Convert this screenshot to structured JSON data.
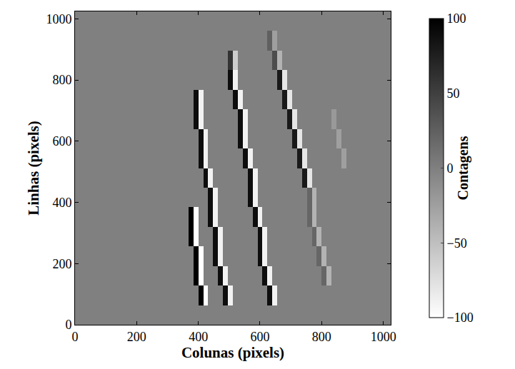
{
  "chart_data": {
    "type": "heatmap",
    "x_label": "Colunas (pixels)",
    "y_label": "Linhas (pixels)",
    "xlim": [
      0,
      1024
    ],
    "ylim": [
      0,
      1024
    ],
    "xticks": [
      0,
      200,
      400,
      600,
      800,
      1000
    ],
    "yticks": [
      0,
      200,
      400,
      600,
      800,
      1000
    ],
    "x": [
      8,
      24,
      40,
      56,
      72,
      88,
      104,
      120,
      136,
      152,
      168,
      184,
      200,
      216,
      232,
      248,
      264,
      280,
      296,
      312,
      328,
      344,
      360,
      376,
      392,
      408,
      424,
      440,
      456,
      472,
      488,
      504,
      520,
      536,
      552,
      568,
      584,
      600,
      616,
      632,
      648,
      664,
      680,
      696,
      712,
      728,
      744,
      760,
      776,
      792,
      808,
      824,
      840,
      856,
      872,
      888,
      904,
      920,
      936,
      952,
      968,
      984,
      1000,
      1016
    ],
    "y": [
      32,
      96,
      160,
      224,
      288,
      352,
      416,
      480,
      544,
      608,
      672,
      736,
      800,
      864,
      928,
      992
    ],
    "z": [
      [
        0,
        0,
        0,
        0,
        0,
        0,
        0,
        0,
        0,
        0,
        0,
        0,
        0,
        0,
        0,
        0,
        0,
        0,
        0,
        0,
        0,
        0,
        0,
        0,
        0,
        0,
        0,
        0,
        0,
        0,
        0,
        0,
        0,
        0,
        0,
        0,
        0,
        0,
        0,
        0,
        0,
        0,
        0,
        0,
        0,
        0,
        0,
        0,
        0,
        0,
        0,
        0,
        0,
        0,
        0,
        0,
        0,
        0,
        0,
        0,
        0,
        0,
        0,
        0
      ],
      [
        0,
        0,
        0,
        0,
        0,
        0,
        0,
        0,
        0,
        0,
        0,
        0,
        0,
        0,
        0,
        0,
        0,
        0,
        0,
        0,
        0,
        0,
        0,
        0,
        0,
        100,
        -100,
        0,
        0,
        0,
        90,
        -90,
        0,
        0,
        0,
        0,
        0,
        0,
        0,
        90,
        -90,
        0,
        0,
        0,
        0,
        0,
        0,
        0,
        0,
        0,
        0,
        0,
        0,
        0,
        0,
        0,
        0,
        0,
        0,
        0,
        0,
        0,
        0,
        0
      ],
      [
        0,
        0,
        0,
        0,
        0,
        0,
        0,
        0,
        0,
        0,
        0,
        0,
        0,
        0,
        0,
        0,
        0,
        0,
        0,
        0,
        0,
        0,
        0,
        0,
        100,
        -100,
        0,
        0,
        0,
        90,
        -90,
        0,
        0,
        0,
        0,
        0,
        0,
        0,
        90,
        -90,
        0,
        0,
        0,
        0,
        0,
        0,
        0,
        0,
        0,
        0,
        20,
        -40,
        0,
        0,
        0,
        0,
        0,
        0,
        0,
        0,
        0,
        0,
        0,
        0
      ],
      [
        0,
        0,
        0,
        0,
        0,
        0,
        0,
        0,
        0,
        0,
        0,
        0,
        0,
        0,
        0,
        0,
        0,
        0,
        0,
        0,
        0,
        0,
        0,
        0,
        100,
        -100,
        0,
        0,
        90,
        -90,
        0,
        0,
        0,
        0,
        0,
        0,
        0,
        90,
        -90,
        0,
        0,
        0,
        0,
        0,
        0,
        0,
        0,
        0,
        0,
        20,
        -40,
        0,
        0,
        0,
        0,
        0,
        0,
        0,
        0,
        0,
        0,
        0,
        0,
        0
      ],
      [
        0,
        0,
        0,
        0,
        0,
        0,
        0,
        0,
        0,
        0,
        0,
        0,
        0,
        0,
        0,
        0,
        0,
        0,
        0,
        0,
        0,
        0,
        0,
        100,
        -100,
        0,
        0,
        0,
        90,
        -90,
        0,
        0,
        0,
        0,
        0,
        0,
        0,
        90,
        -90,
        0,
        0,
        0,
        0,
        0,
        0,
        0,
        0,
        0,
        20,
        -40,
        0,
        0,
        0,
        0,
        0,
        0,
        0,
        0,
        0,
        0,
        0,
        0,
        0,
        0
      ],
      [
        0,
        0,
        0,
        0,
        0,
        0,
        0,
        0,
        0,
        0,
        0,
        0,
        0,
        0,
        0,
        0,
        0,
        0,
        0,
        0,
        0,
        0,
        0,
        100,
        -100,
        0,
        0,
        90,
        -90,
        0,
        0,
        0,
        0,
        0,
        0,
        0,
        90,
        -90,
        0,
        0,
        0,
        0,
        0,
        0,
        0,
        0,
        0,
        20,
        -40,
        0,
        0,
        0,
        0,
        0,
        0,
        0,
        0,
        0,
        0,
        0,
        0,
        0,
        0,
        0
      ],
      [
        0,
        0,
        0,
        0,
        0,
        0,
        0,
        0,
        0,
        0,
        0,
        0,
        0,
        0,
        0,
        0,
        0,
        0,
        0,
        0,
        0,
        0,
        0,
        0,
        0,
        0,
        0,
        90,
        -90,
        0,
        0,
        0,
        0,
        0,
        0,
        90,
        -90,
        0,
        0,
        0,
        0,
        0,
        0,
        0,
        0,
        0,
        0,
        20,
        -40,
        0,
        0,
        0,
        0,
        0,
        0,
        0,
        0,
        0,
        0,
        0,
        0,
        0,
        0,
        0
      ],
      [
        0,
        0,
        0,
        0,
        0,
        0,
        0,
        0,
        0,
        0,
        0,
        0,
        0,
        0,
        0,
        0,
        0,
        0,
        0,
        0,
        0,
        0,
        0,
        0,
        0,
        0,
        90,
        -90,
        0,
        0,
        0,
        0,
        0,
        0,
        0,
        90,
        -90,
        0,
        0,
        0,
        0,
        0,
        0,
        0,
        0,
        0,
        80,
        -80,
        0,
        0,
        0,
        0,
        0,
        0,
        0,
        0,
        0,
        0,
        0,
        0,
        0,
        0,
        0,
        0
      ],
      [
        0,
        0,
        0,
        0,
        0,
        0,
        0,
        0,
        0,
        0,
        0,
        0,
        0,
        0,
        0,
        0,
        0,
        0,
        0,
        0,
        0,
        0,
        0,
        0,
        0,
        90,
        -90,
        0,
        0,
        0,
        0,
        0,
        0,
        0,
        90,
        -90,
        0,
        0,
        0,
        0,
        0,
        0,
        0,
        0,
        0,
        80,
        -80,
        0,
        0,
        0,
        0,
        0,
        0,
        0,
        -25,
        0,
        0,
        0,
        0,
        0,
        0,
        0,
        0,
        0
      ],
      [
        0,
        0,
        0,
        0,
        0,
        0,
        0,
        0,
        0,
        0,
        0,
        0,
        0,
        0,
        0,
        0,
        0,
        0,
        0,
        0,
        0,
        0,
        0,
        0,
        0,
        90,
        -90,
        0,
        0,
        0,
        0,
        0,
        0,
        90,
        -90,
        0,
        0,
        0,
        0,
        0,
        0,
        0,
        0,
        0,
        80,
        -80,
        0,
        0,
        0,
        0,
        0,
        0,
        0,
        -25,
        0,
        0,
        0,
        0,
        0,
        0,
        0,
        0,
        0,
        0
      ],
      [
        0,
        0,
        0,
        0,
        0,
        0,
        0,
        0,
        0,
        0,
        0,
        0,
        0,
        0,
        0,
        0,
        0,
        0,
        0,
        0,
        0,
        0,
        0,
        0,
        90,
        -90,
        0,
        0,
        0,
        0,
        0,
        0,
        0,
        90,
        -90,
        0,
        0,
        0,
        0,
        0,
        0,
        0,
        0,
        80,
        -80,
        0,
        0,
        0,
        0,
        0,
        0,
        0,
        -20,
        0,
        0,
        0,
        0,
        0,
        0,
        0,
        0,
        0,
        0,
        0
      ],
      [
        0,
        0,
        0,
        0,
        0,
        0,
        0,
        0,
        0,
        0,
        0,
        0,
        0,
        0,
        0,
        0,
        0,
        0,
        0,
        0,
        0,
        0,
        0,
        0,
        90,
        -90,
        0,
        0,
        0,
        0,
        0,
        0,
        90,
        -90,
        0,
        0,
        0,
        0,
        0,
        0,
        0,
        0,
        80,
        -80,
        0,
        0,
        0,
        0,
        0,
        0,
        0,
        0,
        0,
        0,
        0,
        0,
        0,
        0,
        0,
        0,
        0,
        0,
        0,
        0
      ],
      [
        0,
        0,
        0,
        0,
        0,
        0,
        0,
        0,
        0,
        0,
        0,
        0,
        0,
        0,
        0,
        0,
        0,
        0,
        0,
        0,
        0,
        0,
        0,
        0,
        0,
        0,
        0,
        0,
        0,
        0,
        0,
        90,
        -90,
        0,
        0,
        0,
        0,
        0,
        0,
        0,
        0,
        80,
        -80,
        0,
        0,
        0,
        0,
        0,
        0,
        0,
        0,
        0,
        0,
        0,
        0,
        0,
        0,
        0,
        0,
        0,
        0,
        0,
        0,
        0
      ],
      [
        0,
        0,
        0,
        0,
        0,
        0,
        0,
        0,
        0,
        0,
        0,
        0,
        0,
        0,
        0,
        0,
        0,
        0,
        0,
        0,
        0,
        0,
        0,
        0,
        0,
        0,
        0,
        0,
        0,
        0,
        0,
        60,
        -60,
        0,
        0,
        0,
        0,
        0,
        0,
        0,
        40,
        -40,
        0,
        0,
        0,
        0,
        0,
        0,
        0,
        0,
        0,
        0,
        0,
        0,
        0,
        0,
        0,
        0,
        0,
        0,
        0,
        0,
        0,
        0
      ],
      [
        0,
        0,
        0,
        0,
        0,
        0,
        0,
        0,
        0,
        0,
        0,
        0,
        0,
        0,
        0,
        0,
        0,
        0,
        0,
        0,
        0,
        0,
        0,
        0,
        0,
        0,
        0,
        0,
        0,
        0,
        0,
        0,
        0,
        0,
        0,
        0,
        0,
        0,
        0,
        25,
        -25,
        0,
        0,
        0,
        0,
        0,
        0,
        0,
        0,
        0,
        0,
        0,
        0,
        0,
        0,
        0,
        0,
        0,
        0,
        0,
        0,
        0,
        0,
        0
      ],
      [
        0,
        0,
        0,
        0,
        0,
        0,
        0,
        0,
        0,
        0,
        0,
        0,
        0,
        0,
        0,
        0,
        0,
        0,
        0,
        0,
        0,
        0,
        0,
        0,
        0,
        0,
        0,
        0,
        0,
        0,
        0,
        0,
        0,
        0,
        0,
        0,
        0,
        0,
        0,
        0,
        0,
        0,
        0,
        0,
        0,
        0,
        0,
        0,
        0,
        0,
        0,
        0,
        0,
        0,
        0,
        0,
        0,
        0,
        0,
        0,
        0,
        0,
        0,
        0
      ]
    ],
    "colorbar": {
      "title": "Contagens",
      "range": [
        -100,
        100
      ],
      "ticks": [
        {
          "value": -100,
          "label": "−100"
        },
        {
          "value": -50,
          "label": "−50"
        },
        0,
        50,
        100
      ]
    }
  }
}
